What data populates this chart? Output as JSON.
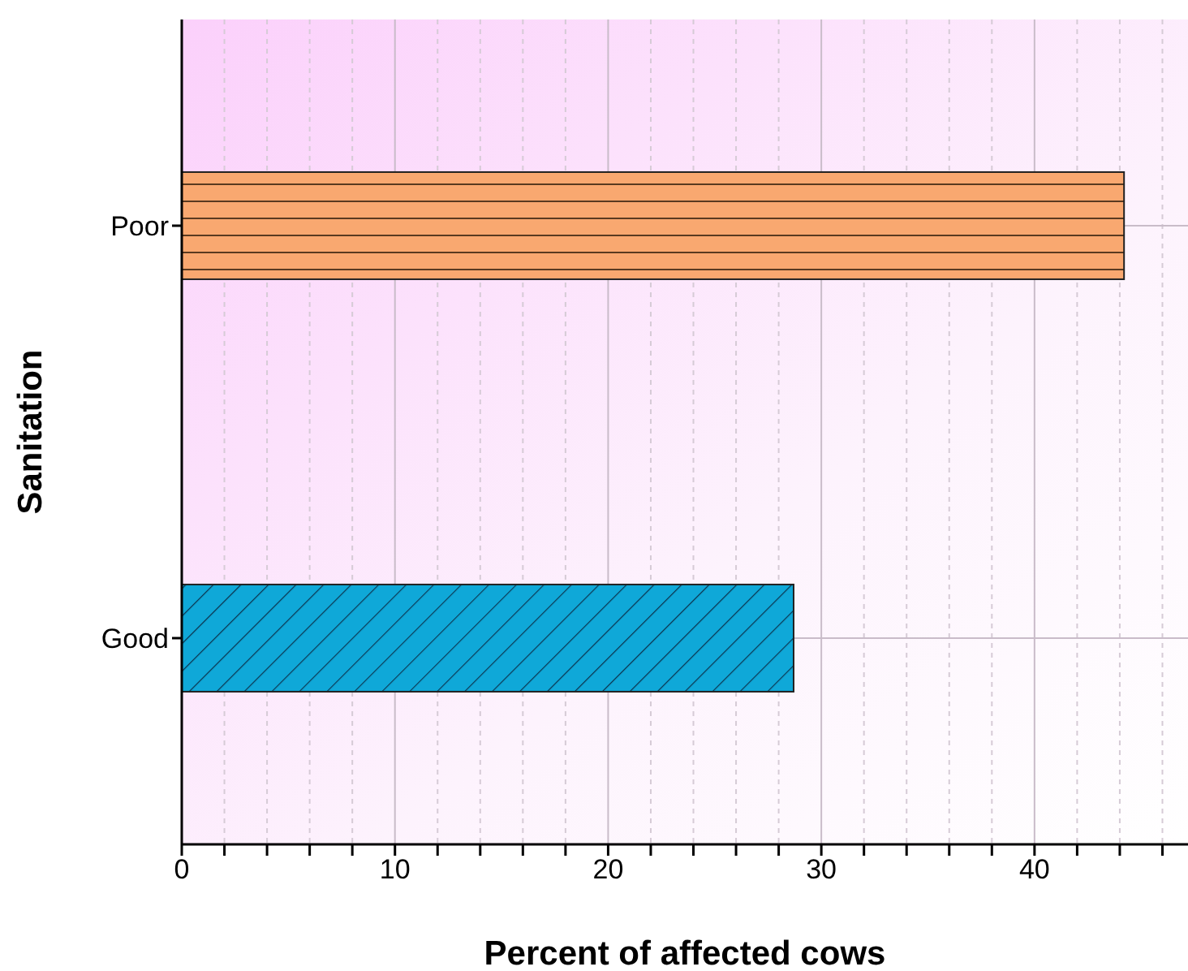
{
  "chart_data": {
    "type": "bar",
    "orientation": "horizontal",
    "xlabel": "Percent of affected cows",
    "ylabel": "Sanitation",
    "categories": [
      "Poor",
      "Good"
    ],
    "values": [
      44.2,
      28.7
    ],
    "colors": [
      "#f9a870",
      "#0fa8d8"
    ],
    "xlim": [
      0,
      47.2
    ],
    "xticks": [
      0,
      {
        "value": 2,
        "label": null
      },
      {
        "value": 4,
        "label": null
      },
      {
        "value": 6,
        "label": null
      },
      {
        "value": 8,
        "label": null
      },
      10,
      {
        "value": 12,
        "label": null
      },
      {
        "value": 14,
        "label": null
      },
      {
        "value": 16,
        "label": null
      },
      {
        "value": 18,
        "label": null
      },
      20,
      {
        "value": 22,
        "label": null
      },
      {
        "value": 24,
        "label": null
      },
      {
        "value": 26,
        "label": null
      },
      {
        "value": 28,
        "label": null
      },
      30,
      {
        "value": 32,
        "label": null
      },
      {
        "value": 34,
        "label": null
      },
      {
        "value": 36,
        "label": null
      },
      {
        "value": 38,
        "label": null
      },
      40,
      {
        "value": 42,
        "label": null
      },
      {
        "value": 44,
        "label": null
      },
      {
        "value": 46,
        "label": null
      }
    ],
    "grid": true
  }
}
